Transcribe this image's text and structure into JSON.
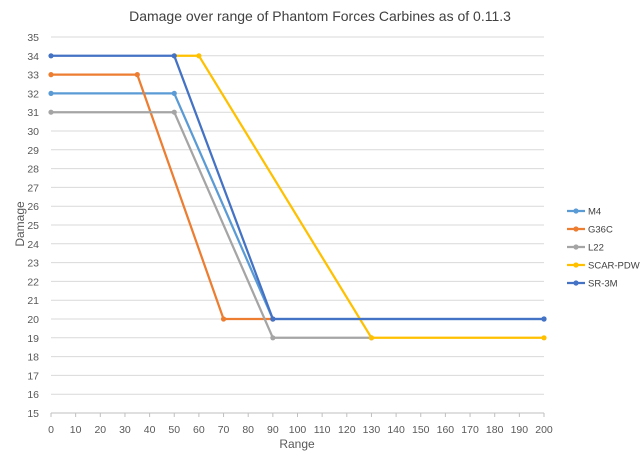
{
  "chart_data": {
    "type": "line",
    "title": "Damage over range of Phantom Forces Carbines as of 0.11.3",
    "xlabel": "Range",
    "ylabel": "Damage",
    "xlim": [
      0,
      200
    ],
    "ylim": [
      15,
      35
    ],
    "x_ticks": [
      "0",
      "10",
      "20",
      "30",
      "40",
      "50",
      "60",
      "70",
      "80",
      "90",
      "100",
      "110",
      "120",
      "130",
      "140",
      "150",
      "160",
      "170",
      "180",
      "190",
      "200"
    ],
    "y_ticks": [
      "15",
      "16",
      "17",
      "18",
      "19",
      "20",
      "21",
      "22",
      "23",
      "24",
      "25",
      "26",
      "27",
      "28",
      "29",
      "30",
      "31",
      "32",
      "33",
      "34",
      "35"
    ],
    "grid": "horizontal",
    "legend_position": "right",
    "series": [
      {
        "name": "M4",
        "color": "#5B9BD5",
        "points": [
          [
            0,
            32
          ],
          [
            50,
            32
          ],
          [
            90,
            20
          ],
          [
            200,
            20
          ]
        ]
      },
      {
        "name": "G36C",
        "color": "#ED7D31",
        "points": [
          [
            0,
            33
          ],
          [
            35,
            33
          ],
          [
            70,
            20
          ],
          [
            90,
            20
          ]
        ]
      },
      {
        "name": "L22",
        "color": "#A5A5A5",
        "points": [
          [
            0,
            31
          ],
          [
            50,
            31
          ],
          [
            90,
            19
          ],
          [
            130,
            19
          ]
        ]
      },
      {
        "name": "SCAR-PDW",
        "color": "#FFC000",
        "points": [
          [
            50,
            34
          ],
          [
            60,
            34
          ],
          [
            130,
            19
          ],
          [
            200,
            19
          ]
        ]
      },
      {
        "name": "SR-3M",
        "color": "#4472C4",
        "points": [
          [
            0,
            34
          ],
          [
            50,
            34
          ],
          [
            90,
            20
          ],
          [
            200,
            20
          ]
        ]
      }
    ]
  }
}
